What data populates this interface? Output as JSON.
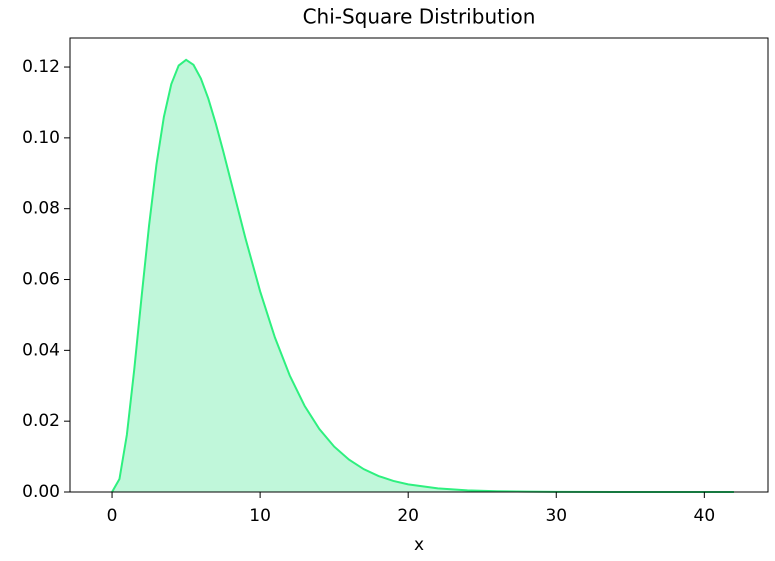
{
  "chart_data": {
    "type": "area",
    "title": "Chi-Square Distribution",
    "x_label": "x",
    "x": [
      0,
      0.5,
      1,
      1.5,
      2,
      2.5,
      3,
      3.5,
      4,
      4.5,
      5,
      5.5,
      6,
      6.5,
      7,
      7.5,
      8,
      9,
      10,
      11,
      12,
      13,
      14,
      15,
      16,
      17,
      18,
      19,
      20,
      22,
      24,
      26,
      28,
      30,
      34,
      38,
      42
    ],
    "values": [
      0,
      0.00366,
      0.01613,
      0.03462,
      0.05535,
      0.0753,
      0.09251,
      0.10592,
      0.11518,
      0.12042,
      0.12204,
      0.12062,
      0.11677,
      0.11109,
      0.10412,
      0.09636,
      0.08818,
      0.0718,
      0.05667,
      0.04362,
      0.03289,
      0.02436,
      0.01779,
      0.01282,
      0.00914,
      0.00645,
      0.00451,
      0.00313,
      0.00216,
      0.00101,
      0.00046,
      0.00021,
      9e-05,
      4e-05,
      1e-05,
      0,
      0
    ],
    "color": "#2ef07f",
    "fill_color": "#c0f7da",
    "xlim": [
      -2.84,
      44.3
    ],
    "xticks": [
      0,
      10,
      20,
      30,
      40
    ],
    "ylim": [
      0,
      0.1282
    ],
    "yticks": [
      {
        "value": 0,
        "label": "0.00"
      },
      {
        "value": 0.02,
        "label": "0.02"
      },
      {
        "value": 0.04,
        "label": "0.04"
      },
      {
        "value": 0.06,
        "label": "0.06"
      },
      {
        "value": 0.08,
        "label": "0.08"
      },
      {
        "value": 0.1,
        "label": "0.10"
      },
      {
        "value": 0.12,
        "label": "0.12"
      }
    ]
  }
}
